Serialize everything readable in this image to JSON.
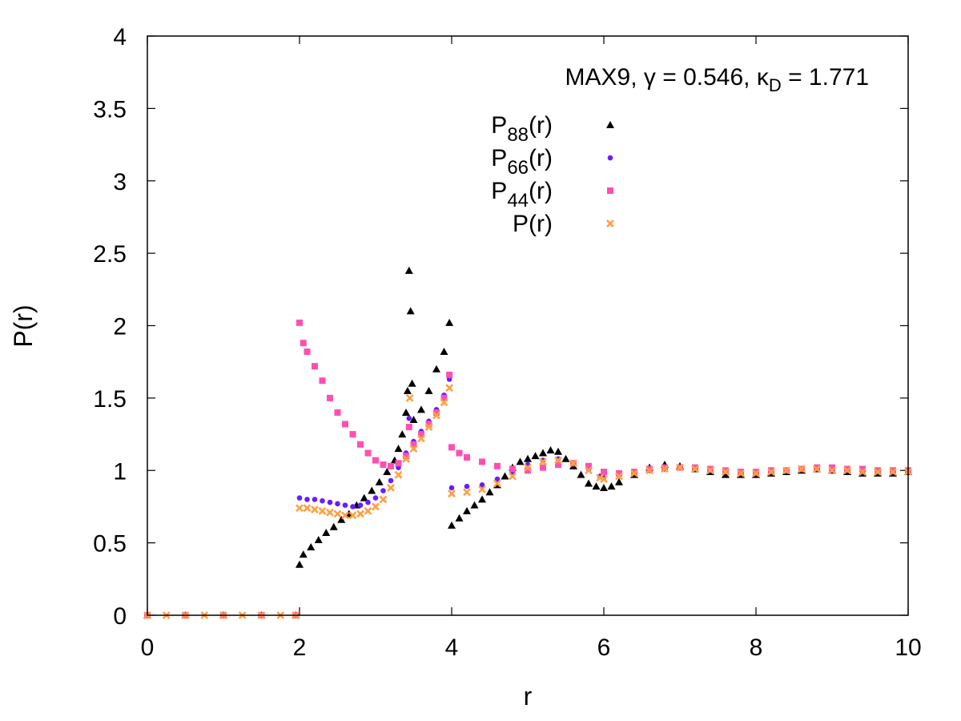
{
  "chart_data": {
    "type": "scatter",
    "title": "",
    "annotation": {
      "prefix": "MAX9, ",
      "gamma_symbol": "γ",
      "gamma_eq": " = 0.546, ",
      "kappa_symbol": "κ",
      "kappa_sub": "D",
      "kappa_eq": " = 1.771"
    },
    "xlabel": "r",
    "ylabel": "P(r)",
    "xlim": [
      0,
      10
    ],
    "ylim": [
      0,
      4
    ],
    "xticks": [
      "0",
      "2",
      "4",
      "6",
      "8",
      "10"
    ],
    "yticks": [
      "0",
      "0.5",
      "1",
      "1.5",
      "2",
      "2.5",
      "3",
      "3.5",
      "4"
    ],
    "legend_position": "top-right",
    "series": [
      {
        "name": "P88(r)",
        "label_main": "P",
        "label_sub": "88",
        "label_tail": "(r)",
        "color": "#000000",
        "marker": "triangle",
        "points": [
          [
            0,
            0
          ],
          [
            0.5,
            0
          ],
          [
            1,
            0
          ],
          [
            1.5,
            0
          ],
          [
            1.95,
            0
          ],
          [
            2,
            0.35
          ],
          [
            2.05,
            0.42
          ],
          [
            2.15,
            0.47
          ],
          [
            2.25,
            0.52
          ],
          [
            2.35,
            0.57
          ],
          [
            2.45,
            0.61
          ],
          [
            2.55,
            0.66
          ],
          [
            2.65,
            0.7
          ],
          [
            2.75,
            0.76
          ],
          [
            2.85,
            0.81
          ],
          [
            2.95,
            0.86
          ],
          [
            3.05,
            0.92
          ],
          [
            3.15,
            0.99
          ],
          [
            3.25,
            1.07
          ],
          [
            3.3,
            1.15
          ],
          [
            3.35,
            1.25
          ],
          [
            3.4,
            1.4
          ],
          [
            3.42,
            1.55
          ],
          [
            3.44,
            2.38
          ],
          [
            3.46,
            2.1
          ],
          [
            3.48,
            1.6
          ],
          [
            3.5,
            1.35
          ],
          [
            3.6,
            1.42
          ],
          [
            3.7,
            1.55
          ],
          [
            3.8,
            1.7
          ],
          [
            3.9,
            1.82
          ],
          [
            3.97,
            2.02
          ],
          [
            4.0,
            0.62
          ],
          [
            4.1,
            0.67
          ],
          [
            4.2,
            0.72
          ],
          [
            4.3,
            0.76
          ],
          [
            4.4,
            0.8
          ],
          [
            4.5,
            0.85
          ],
          [
            4.6,
            0.9
          ],
          [
            4.7,
            0.96
          ],
          [
            4.8,
            1.02
          ],
          [
            4.9,
            1.06
          ],
          [
            5.0,
            1.08
          ],
          [
            5.1,
            1.1
          ],
          [
            5.2,
            1.12
          ],
          [
            5.3,
            1.14
          ],
          [
            5.4,
            1.13
          ],
          [
            5.5,
            1.08
          ],
          [
            5.6,
            1.03
          ],
          [
            5.7,
            0.97
          ],
          [
            5.8,
            0.91
          ],
          [
            5.9,
            0.89
          ],
          [
            6.0,
            0.88
          ],
          [
            6.1,
            0.89
          ],
          [
            6.2,
            0.92
          ],
          [
            6.4,
            0.97
          ],
          [
            6.6,
            1.02
          ],
          [
            6.8,
            1.04
          ],
          [
            7.0,
            1.03
          ],
          [
            7.2,
            1.01
          ],
          [
            7.4,
            0.99
          ],
          [
            7.6,
            0.97
          ],
          [
            7.8,
            0.97
          ],
          [
            8.0,
            0.97
          ],
          [
            8.2,
            0.98
          ],
          [
            8.4,
            0.99
          ],
          [
            8.6,
            1.0
          ],
          [
            8.8,
            1.01
          ],
          [
            9.0,
            1.0
          ],
          [
            9.2,
            0.99
          ],
          [
            9.4,
            0.98
          ],
          [
            9.6,
            0.98
          ],
          [
            9.8,
            0.98
          ],
          [
            10.0,
            0.99
          ]
        ]
      },
      {
        "name": "P66(r)",
        "label_main": "P",
        "label_sub": "66",
        "label_tail": "(r)",
        "color": "#6a1bff",
        "marker": "circle",
        "points": [
          [
            0,
            0
          ],
          [
            0.5,
            0
          ],
          [
            1,
            0
          ],
          [
            1.5,
            0
          ],
          [
            1.95,
            0
          ],
          [
            2,
            0.81
          ],
          [
            2.1,
            0.8
          ],
          [
            2.2,
            0.8
          ],
          [
            2.3,
            0.79
          ],
          [
            2.4,
            0.78
          ],
          [
            2.5,
            0.77
          ],
          [
            2.6,
            0.76
          ],
          [
            2.7,
            0.75
          ],
          [
            2.8,
            0.76
          ],
          [
            2.9,
            0.78
          ],
          [
            3.0,
            0.81
          ],
          [
            3.1,
            0.86
          ],
          [
            3.2,
            0.93
          ],
          [
            3.3,
            1.02
          ],
          [
            3.4,
            1.12
          ],
          [
            3.44,
            1.36
          ],
          [
            3.5,
            1.2
          ],
          [
            3.6,
            1.27
          ],
          [
            3.7,
            1.34
          ],
          [
            3.8,
            1.42
          ],
          [
            3.9,
            1.52
          ],
          [
            3.97,
            1.63
          ],
          [
            4.0,
            0.88
          ],
          [
            4.2,
            0.89
          ],
          [
            4.4,
            0.9
          ],
          [
            4.6,
            0.94
          ],
          [
            4.8,
            0.99
          ],
          [
            5.0,
            1.04
          ],
          [
            5.2,
            1.07
          ],
          [
            5.4,
            1.08
          ],
          [
            5.6,
            1.05
          ],
          [
            5.8,
            1.01
          ],
          [
            5.95,
            0.96
          ],
          [
            6.0,
            0.95
          ],
          [
            6.2,
            0.97
          ],
          [
            6.4,
            0.99
          ],
          [
            6.6,
            1.0
          ],
          [
            6.8,
            1.01
          ],
          [
            7.0,
            1.02
          ],
          [
            7.2,
            1.01
          ],
          [
            7.4,
            1.0
          ],
          [
            7.6,
            0.99
          ],
          [
            7.8,
            0.98
          ],
          [
            8.0,
            0.98
          ],
          [
            8.2,
            0.99
          ],
          [
            8.4,
            1.0
          ],
          [
            8.6,
            1.01
          ],
          [
            8.8,
            1.01
          ],
          [
            9.0,
            1.0
          ],
          [
            9.2,
            1.0
          ],
          [
            9.4,
            0.99
          ],
          [
            9.6,
            0.99
          ],
          [
            9.8,
            0.99
          ],
          [
            10.0,
            0.99
          ]
        ]
      },
      {
        "name": "P44(r)",
        "label_main": "P",
        "label_sub": "44",
        "label_tail": "(r)",
        "color": "#ff4fb0",
        "marker": "square",
        "points": [
          [
            0,
            0
          ],
          [
            0.5,
            0
          ],
          [
            1,
            0
          ],
          [
            1.5,
            0
          ],
          [
            1.95,
            0
          ],
          [
            2.0,
            2.02
          ],
          [
            2.05,
            1.88
          ],
          [
            2.1,
            1.82
          ],
          [
            2.2,
            1.72
          ],
          [
            2.3,
            1.62
          ],
          [
            2.4,
            1.5
          ],
          [
            2.5,
            1.4
          ],
          [
            2.6,
            1.32
          ],
          [
            2.7,
            1.25
          ],
          [
            2.8,
            1.18
          ],
          [
            2.9,
            1.12
          ],
          [
            3.0,
            1.07
          ],
          [
            3.1,
            1.04
          ],
          [
            3.2,
            1.03
          ],
          [
            3.3,
            1.05
          ],
          [
            3.4,
            1.1
          ],
          [
            3.44,
            1.3
          ],
          [
            3.5,
            1.18
          ],
          [
            3.6,
            1.25
          ],
          [
            3.7,
            1.32
          ],
          [
            3.8,
            1.4
          ],
          [
            3.9,
            1.5
          ],
          [
            3.97,
            1.66
          ],
          [
            4.0,
            1.16
          ],
          [
            4.1,
            1.12
          ],
          [
            4.2,
            1.09
          ],
          [
            4.4,
            1.06
          ],
          [
            4.6,
            1.03
          ],
          [
            4.8,
            1.01
          ],
          [
            5.0,
            1.0
          ],
          [
            5.2,
            1.02
          ],
          [
            5.4,
            1.04
          ],
          [
            5.6,
            1.05
          ],
          [
            5.8,
            1.03
          ],
          [
            6.0,
            0.99
          ],
          [
            6.2,
            0.98
          ],
          [
            6.4,
            0.99
          ],
          [
            6.6,
            1.01
          ],
          [
            6.8,
            1.02
          ],
          [
            7.0,
            1.02
          ],
          [
            7.2,
            1.02
          ],
          [
            7.4,
            1.01
          ],
          [
            7.6,
            1.0
          ],
          [
            7.8,
            0.99
          ],
          [
            8.0,
            0.99
          ],
          [
            8.2,
            1.0
          ],
          [
            8.4,
            1.0
          ],
          [
            8.6,
            1.01
          ],
          [
            8.8,
            1.02
          ],
          [
            9.0,
            1.02
          ],
          [
            9.2,
            1.01
          ],
          [
            9.4,
            1.01
          ],
          [
            9.6,
            1.0
          ],
          [
            9.8,
            1.0
          ],
          [
            10.0,
            1.0
          ]
        ]
      },
      {
        "name": "P(r)",
        "label_main": "P",
        "label_sub": "",
        "label_tail": "(r)",
        "color": "#ffa040",
        "marker": "cross",
        "points": [
          [
            0,
            0
          ],
          [
            0.25,
            0
          ],
          [
            0.5,
            0
          ],
          [
            0.75,
            0
          ],
          [
            1,
            0
          ],
          [
            1.25,
            0
          ],
          [
            1.5,
            0
          ],
          [
            1.75,
            0
          ],
          [
            1.95,
            0
          ],
          [
            2.0,
            0.74
          ],
          [
            2.1,
            0.74
          ],
          [
            2.2,
            0.73
          ],
          [
            2.3,
            0.72
          ],
          [
            2.4,
            0.71
          ],
          [
            2.5,
            0.7
          ],
          [
            2.6,
            0.69
          ],
          [
            2.7,
            0.69
          ],
          [
            2.8,
            0.7
          ],
          [
            2.9,
            0.72
          ],
          [
            3.0,
            0.75
          ],
          [
            3.1,
            0.8
          ],
          [
            3.2,
            0.88
          ],
          [
            3.3,
            0.97
          ],
          [
            3.4,
            1.08
          ],
          [
            3.45,
            1.5
          ],
          [
            3.5,
            1.15
          ],
          [
            3.6,
            1.22
          ],
          [
            3.7,
            1.3
          ],
          [
            3.8,
            1.38
          ],
          [
            3.9,
            1.47
          ],
          [
            3.97,
            1.57
          ],
          [
            4.0,
            0.84
          ],
          [
            4.2,
            0.85
          ],
          [
            4.4,
            0.87
          ],
          [
            4.6,
            0.91
          ],
          [
            4.8,
            0.96
          ],
          [
            5.0,
            1.02
          ],
          [
            5.2,
            1.06
          ],
          [
            5.4,
            1.07
          ],
          [
            5.6,
            1.05
          ],
          [
            5.8,
            1.0
          ],
          [
            5.95,
            0.95
          ],
          [
            6.0,
            0.94
          ],
          [
            6.2,
            0.96
          ],
          [
            6.4,
            0.98
          ],
          [
            6.6,
            1.0
          ],
          [
            6.8,
            1.01
          ],
          [
            7.0,
            1.02
          ],
          [
            7.2,
            1.01
          ],
          [
            7.4,
            1.0
          ],
          [
            7.6,
            0.99
          ],
          [
            7.8,
            0.98
          ],
          [
            8.0,
            0.98
          ],
          [
            8.2,
            0.99
          ],
          [
            8.4,
            1.0
          ],
          [
            8.6,
            1.01
          ],
          [
            8.8,
            1.01
          ],
          [
            9.0,
            1.0
          ],
          [
            9.2,
            1.0
          ],
          [
            9.4,
            0.99
          ],
          [
            9.6,
            0.99
          ],
          [
            9.8,
            0.99
          ],
          [
            10.0,
            0.99
          ]
        ]
      }
    ]
  }
}
